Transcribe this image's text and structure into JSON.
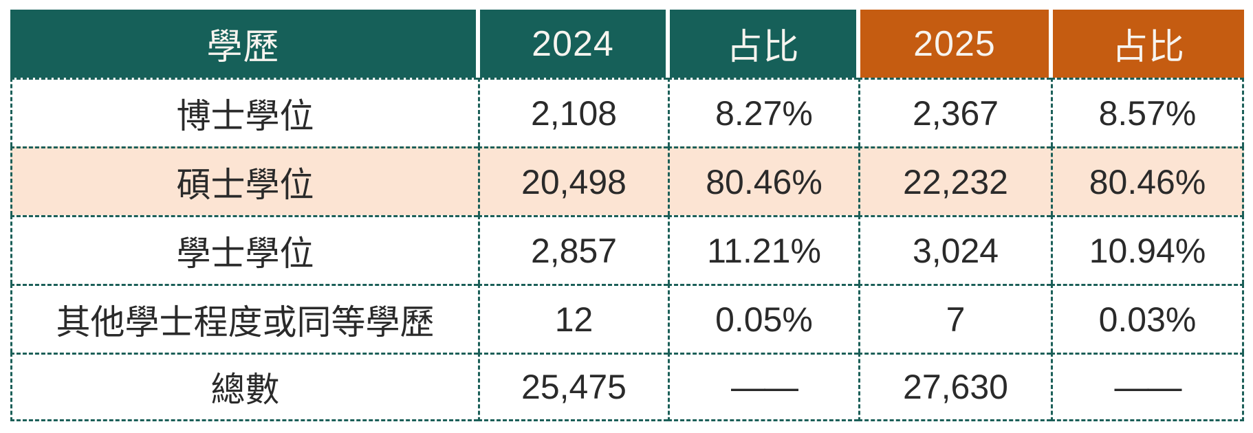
{
  "chart_data": {
    "type": "table",
    "columns": [
      "學歷",
      "2024",
      "占比",
      "2025",
      "占比"
    ],
    "rows": [
      [
        "博士學位",
        "2,108",
        "8.27%",
        "2,367",
        "8.57%"
      ],
      [
        "碩士學位",
        "20,498",
        "80.46%",
        "22,232",
        "80.46%"
      ],
      [
        "學士學位",
        "2,857",
        "11.21%",
        "3,024",
        "10.94%"
      ],
      [
        "其他學士程度或同等學歷",
        "12",
        "0.05%",
        "7",
        "0.03%"
      ],
      [
        "總數",
        "25,475",
        "——",
        "27,630",
        "——"
      ]
    ],
    "highlighted_row": "碩士學位",
    "legend_position": "none",
    "colors": {
      "header_2024_group": "#166059",
      "header_2025_group": "#C55C11",
      "highlight_row_bg": "#FCE4D3",
      "grid_border": "#1B5F58",
      "header_text": "#F7F4EF",
      "body_text": "#2A2A2A"
    }
  }
}
